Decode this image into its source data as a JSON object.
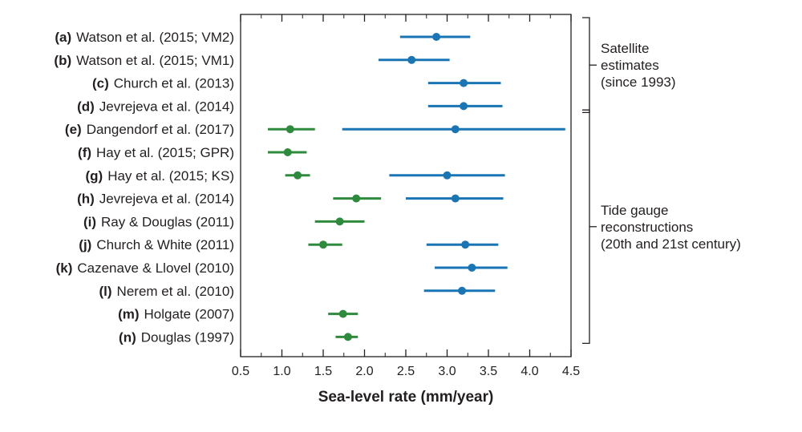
{
  "chart_data": {
    "type": "scatter",
    "xlabel": "Sea-level rate (mm/year)",
    "xlim": [
      0.5,
      4.5
    ],
    "xticks": [
      "0.5",
      "1.0",
      "1.5",
      "2.0",
      "2.5",
      "3.0",
      "3.5",
      "4.0",
      "4.5"
    ],
    "grid": false,
    "series_colors": {
      "satellite_era": "#1a75b5",
      "twentieth_century": "#2e8b3d"
    },
    "rows": [
      {
        "letter": "(a)",
        "study": "Watson et al. (2015; VM2)",
        "points": [
          {
            "color": "blue",
            "value": 2.87,
            "low": 2.43,
            "high": 3.28
          }
        ]
      },
      {
        "letter": "(b)",
        "study": "Watson et al. (2015; VM1)",
        "points": [
          {
            "color": "blue",
            "value": 2.57,
            "low": 2.17,
            "high": 3.03
          }
        ]
      },
      {
        "letter": "(c)",
        "study": "Church et al. (2013)",
        "points": [
          {
            "color": "blue",
            "value": 3.2,
            "low": 2.77,
            "high": 3.65
          }
        ]
      },
      {
        "letter": "(d)",
        "study": "Jevrejeva et al. (2014)",
        "points": [
          {
            "color": "blue",
            "value": 3.2,
            "low": 2.77,
            "high": 3.67
          }
        ]
      },
      {
        "letter": "(e)",
        "study": "Dangendorf et al. (2017)",
        "points": [
          {
            "color": "green",
            "value": 1.1,
            "low": 0.83,
            "high": 1.4
          },
          {
            "color": "blue",
            "value": 3.1,
            "low": 1.73,
            "high": 4.43
          }
        ]
      },
      {
        "letter": "(f)",
        "study": "Hay et al. (2015; GPR)",
        "points": [
          {
            "color": "green",
            "value": 1.07,
            "low": 0.83,
            "high": 1.3
          }
        ]
      },
      {
        "letter": "(g)",
        "study": "Hay et al. (2015; KS)",
        "points": [
          {
            "color": "green",
            "value": 1.19,
            "low": 1.04,
            "high": 1.34
          },
          {
            "color": "blue",
            "value": 3.0,
            "low": 2.3,
            "high": 3.7
          }
        ]
      },
      {
        "letter": "(h)",
        "study": "Jevrejeva et al. (2014)",
        "points": [
          {
            "color": "green",
            "value": 1.9,
            "low": 1.62,
            "high": 2.2
          },
          {
            "color": "blue",
            "value": 3.1,
            "low": 2.5,
            "high": 3.68
          }
        ]
      },
      {
        "letter": "(i)",
        "study": "Ray & Douglas (2011)",
        "points": [
          {
            "color": "green",
            "value": 1.7,
            "low": 1.4,
            "high": 2.0
          }
        ]
      },
      {
        "letter": "(j)",
        "study": "Church & White (2011)",
        "points": [
          {
            "color": "green",
            "value": 1.5,
            "low": 1.32,
            "high": 1.73
          },
          {
            "color": "blue",
            "value": 3.22,
            "low": 2.75,
            "high": 3.62
          }
        ]
      },
      {
        "letter": "(k)",
        "study": "Cazenave & Llovel (2010)",
        "points": [
          {
            "color": "blue",
            "value": 3.3,
            "low": 2.85,
            "high": 3.73
          }
        ]
      },
      {
        "letter": "(l)",
        "study": "Nerem et al. (2010)",
        "points": [
          {
            "color": "blue",
            "value": 3.18,
            "low": 2.72,
            "high": 3.58
          }
        ]
      },
      {
        "letter": "(m)",
        "study": "Holgate (2007)",
        "points": [
          {
            "color": "green",
            "value": 1.74,
            "low": 1.56,
            "high": 1.92
          }
        ]
      },
      {
        "letter": "(n)",
        "study": "Douglas (1997)",
        "points": [
          {
            "color": "green",
            "value": 1.8,
            "low": 1.65,
            "high": 1.92
          }
        ]
      }
    ],
    "groups": [
      {
        "lines": [
          "Satellite",
          "estimates",
          "(since 1993)"
        ],
        "rows_from": 0,
        "rows_to": 3
      },
      {
        "lines": [
          "Tide gauge",
          "reconstructions",
          "(20th and 21st century)"
        ],
        "rows_from": 4,
        "rows_to": 13
      }
    ]
  }
}
